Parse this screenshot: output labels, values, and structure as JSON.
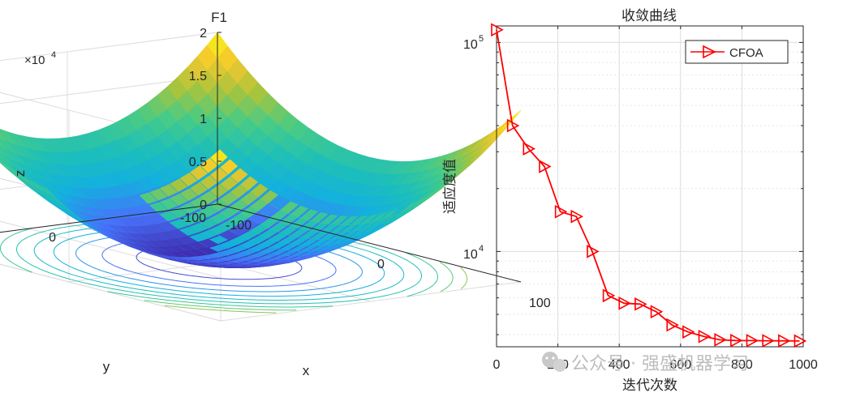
{
  "chart_data": [
    {
      "type": "surface3d",
      "title": "F1",
      "xlabel": "x",
      "ylabel": "y",
      "zlabel": "z",
      "z_exponent_label": "×10",
      "z_exponent_power": "4",
      "x_ticks": [
        "-100",
        "0",
        "100"
      ],
      "y_ticks": [
        "-100",
        "0",
        "100"
      ],
      "z_ticks": [
        "0",
        "0.5",
        "1",
        "1.5",
        "2"
      ],
      "xlim": [
        -100,
        100
      ],
      "ylim": [
        -100,
        100
      ],
      "zlim": [
        0,
        20000
      ],
      "function": "z = x^2 + y^2",
      "contour_levels": [
        1500,
        3000,
        4500,
        6000,
        7500,
        9000,
        10500,
        12000,
        13500
      ],
      "colormap": [
        "#3e26a8",
        "#4772fa",
        "#13b1de",
        "#1ebfb8",
        "#48cb86",
        "#a7c43d",
        "#f5c82e",
        "#f9fb15"
      ]
    },
    {
      "type": "line",
      "title": "收敛曲线",
      "xlabel": "迭代次数",
      "ylabel": "适应度值",
      "yscale": "log",
      "xlim": [
        0,
        1000
      ],
      "ylim": [
        3500,
        120000
      ],
      "x_ticks": [
        "0",
        "200",
        "400",
        "600",
        "800",
        "1000"
      ],
      "y_tick_base": "10",
      "y_tick_powers": [
        "4",
        "5"
      ],
      "legend": "top-right",
      "grid": true,
      "series": [
        {
          "name": "CFOA",
          "color": "#ff0000",
          "marker": "triangle-right",
          "x": [
            0,
            52,
            104,
            156,
            208,
            260,
            312,
            364,
            416,
            468,
            520,
            572,
            624,
            676,
            728,
            780,
            832,
            884,
            936,
            988
          ],
          "y": [
            115000,
            40000,
            31000,
            25500,
            15500,
            14700,
            10000,
            6150,
            5650,
            5600,
            5150,
            4450,
            4120,
            3920,
            3780,
            3750,
            3745,
            3740,
            3735,
            3730
          ]
        }
      ]
    }
  ],
  "watermark": {
    "icon": "wechat-icon",
    "text": "公众号 · 强盛机器学习"
  }
}
